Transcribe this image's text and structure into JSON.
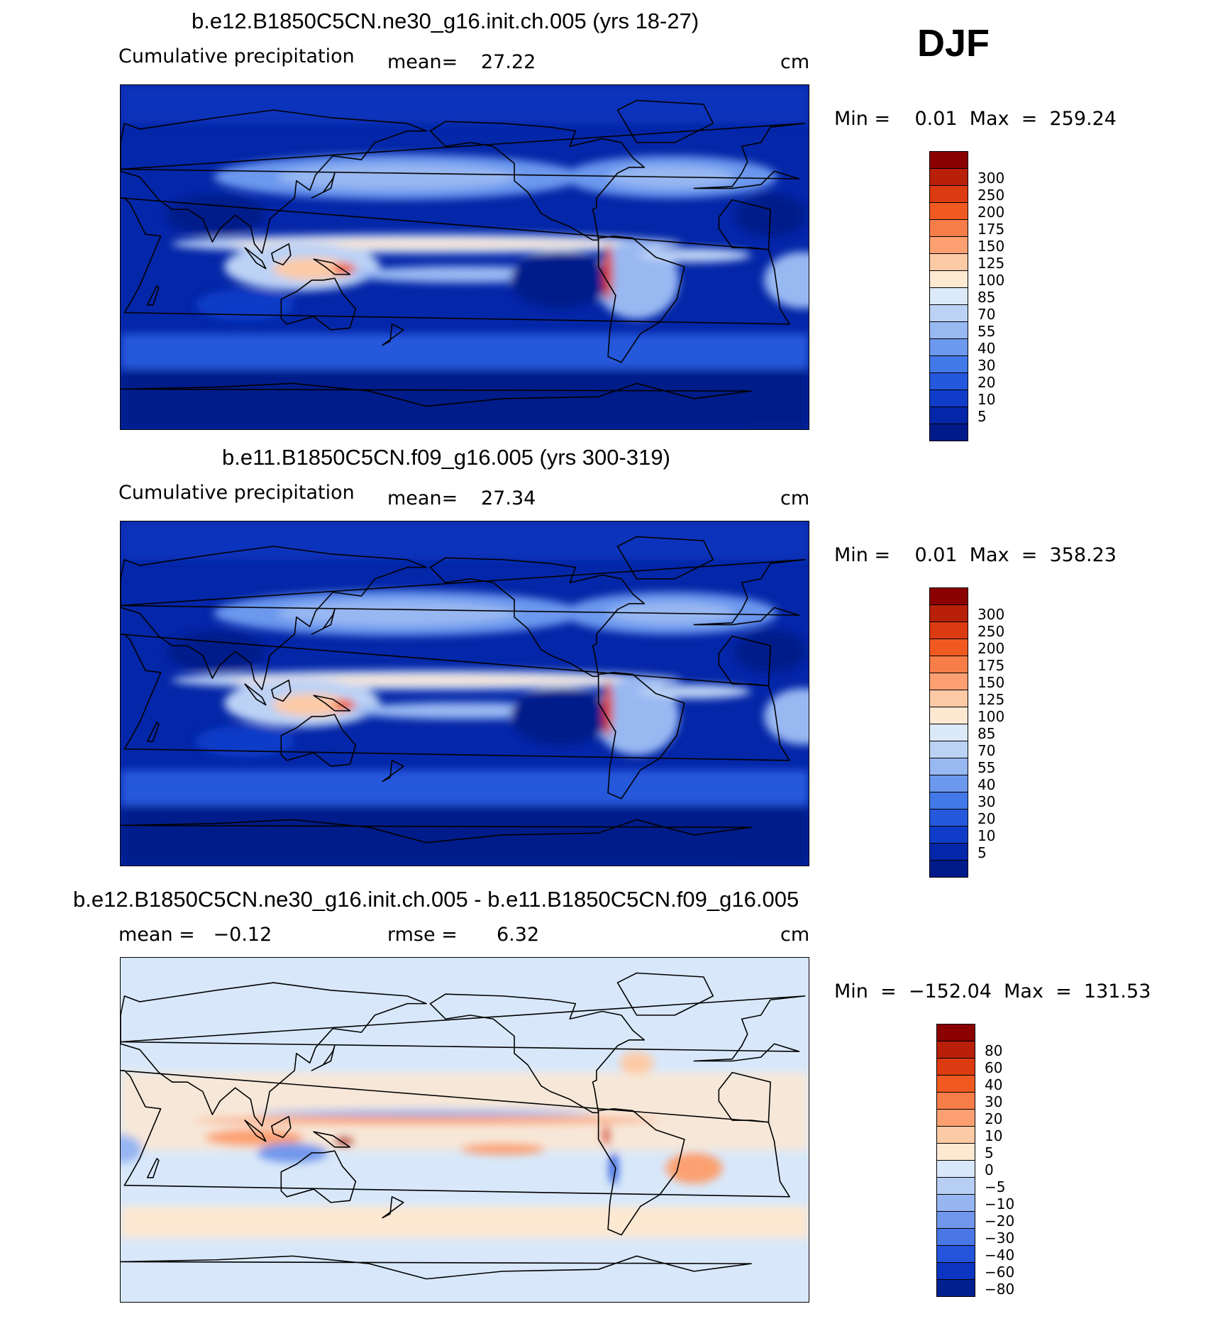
{
  "season": "DJF",
  "panels": [
    {
      "title": "b.e12.B1850C5CN.ne30_g16.init.ch.005 (yrs 18-27)",
      "left_label": "Cumulative precipitation",
      "center_label": "mean=",
      "center_value": "27.22",
      "units": "cm",
      "min_max": "Min =    0.01  Max  =  259.24",
      "scheme": "abs",
      "colorbar": {
        "colors": [
          "#8b0000",
          "#b8200a",
          "#dc3a10",
          "#f05a20",
          "#f77d48",
          "#fca071",
          "#fdcaa6",
          "#fde8d2",
          "#dce9f8",
          "#bcd2f5",
          "#98b8f2",
          "#6c98ee",
          "#4378e8",
          "#2558dc",
          "#0f3cc8",
          "#0426a8",
          "#001a8a"
        ],
        "labels": [
          "300",
          "250",
          "200",
          "175",
          "150",
          "125",
          "100",
          "85",
          "70",
          "55",
          "40",
          "30",
          "20",
          "10",
          "5"
        ]
      }
    },
    {
      "title": "b.e11.B1850C5CN.f09_g16.005 (yrs 300-319)",
      "left_label": "Cumulative precipitation",
      "center_label": "mean=",
      "center_value": "27.34",
      "units": "cm",
      "min_max": "Min =    0.01  Max  =  358.23",
      "scheme": "abs",
      "colorbar": {
        "colors": [
          "#8b0000",
          "#b8200a",
          "#dc3a10",
          "#f05a20",
          "#f77d48",
          "#fca071",
          "#fdcaa6",
          "#fde8d2",
          "#dce9f8",
          "#bcd2f5",
          "#98b8f2",
          "#6c98ee",
          "#4378e8",
          "#2558dc",
          "#0f3cc8",
          "#0426a8",
          "#001a8a"
        ],
        "labels": [
          "300",
          "250",
          "200",
          "175",
          "150",
          "125",
          "100",
          "85",
          "70",
          "55",
          "40",
          "30",
          "20",
          "10",
          "5"
        ]
      }
    },
    {
      "title": "b.e12.B1850C5CN.ne30_g16.init.ch.005 - b.e11.B1850C5CN.f09_g16.005",
      "left_label": "mean =   −0.12",
      "center_label": "rmse =",
      "center_value": "6.32",
      "units": "cm",
      "min_max": "Min  =  −152.04  Max  =  131.53",
      "scheme": "diff",
      "colorbar": {
        "colors": [
          "#8b0000",
          "#b8200a",
          "#dc3a10",
          "#f05a20",
          "#f77d48",
          "#fca071",
          "#fdcaa6",
          "#fde8d2",
          "#d8e8fa",
          "#b7cff5",
          "#97b5f1",
          "#7197ec",
          "#4a77e6",
          "#2454dc",
          "#0b35c0",
          "#00218f"
        ],
        "labels": [
          "80",
          "60",
          "40",
          "30",
          "20",
          "10",
          "5",
          "0",
          "−5",
          "−10",
          "−20",
          "−30",
          "−40",
          "−60",
          "−80"
        ]
      }
    }
  ]
}
